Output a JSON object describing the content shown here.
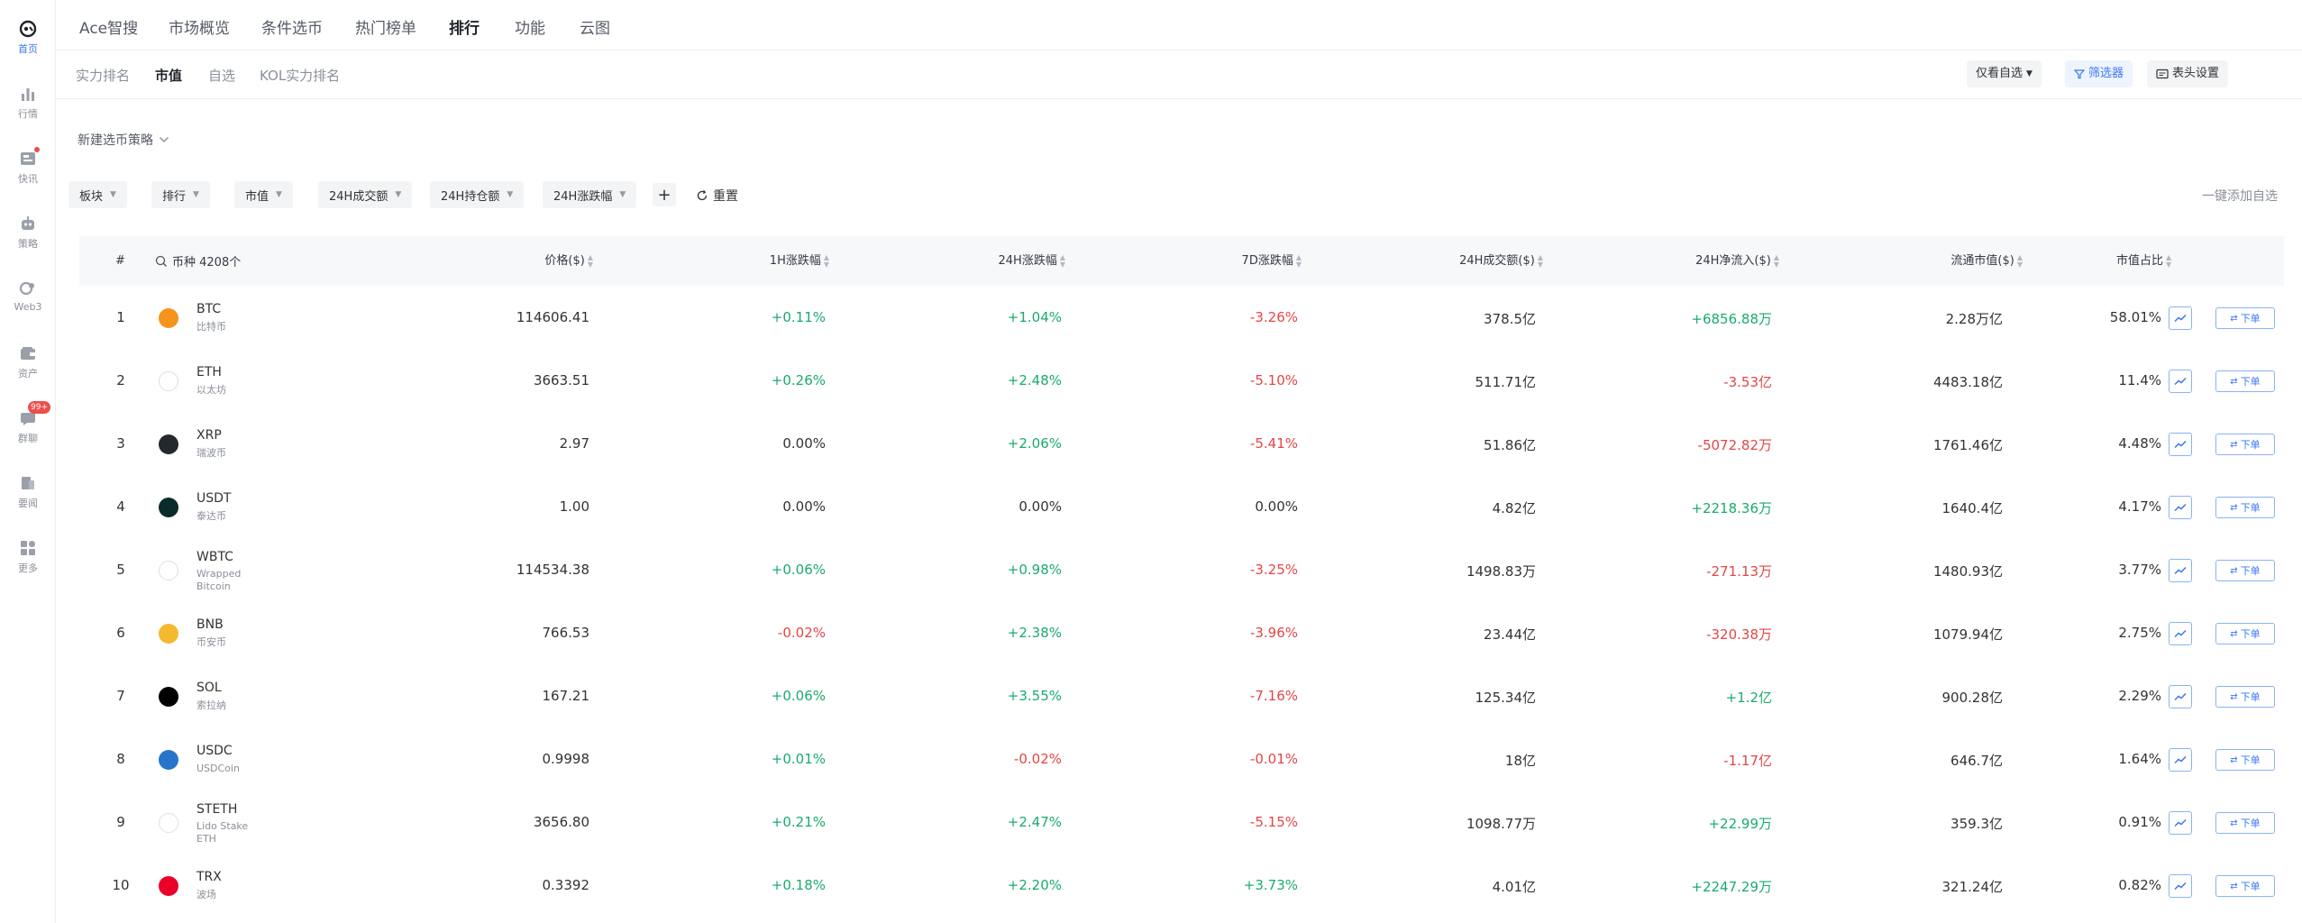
{
  "sidebar": {
    "items": [
      {
        "label": "首页",
        "icon": "home-logo-icon",
        "active": true
      },
      {
        "label": "行情",
        "icon": "bar-chart-icon"
      },
      {
        "label": "快讯",
        "icon": "news-icon"
      },
      {
        "label": "策略",
        "icon": "robot-icon"
      },
      {
        "label": "Web3",
        "icon": "web3-icon"
      },
      {
        "label": "资产",
        "icon": "wallet-icon"
      },
      {
        "label": "群聊",
        "icon": "chat-icon",
        "badge": "99+"
      },
      {
        "label": "要闻",
        "icon": "headline-icon"
      },
      {
        "label": "更多",
        "icon": "grid-icon"
      }
    ]
  },
  "topnav": {
    "items": [
      "Ace智搜",
      "市场概览",
      "条件选币",
      "热门榜单",
      "排行",
      "功能",
      "云图"
    ],
    "active": "排行"
  },
  "subnav": {
    "items": [
      "实力排名",
      "市值",
      "自选",
      "KOL实力排名"
    ],
    "active": "市值",
    "watchlist_only": "仅看自选",
    "filter": "筛选器",
    "header_settings": "表头设置"
  },
  "strategy": {
    "label": "新建选币策略"
  },
  "filters": [
    "板块",
    "排行",
    "市值",
    "24H成交额",
    "24H持仓额",
    "24H涨跌幅"
  ],
  "reset": "重置",
  "add_all": "一键添加自选",
  "table": {
    "headers": {
      "rank": "#",
      "coin": "币种 4208个",
      "price": "价格($)",
      "h1": "1H涨跌幅",
      "h24": "24H涨跌幅",
      "d7": "7D涨跌幅",
      "volume": "24H成交额($)",
      "netflow": "24H净流入($)",
      "mcap": "流通市值($)",
      "share": "市值占比"
    },
    "order_label": "下单",
    "rows": [
      {
        "rank": "1",
        "symbol": "BTC",
        "name": "比特币",
        "logo_color": "#f7931a",
        "price": "114606.41",
        "h1": "+0.11%",
        "h24": "+1.04%",
        "d7": "-3.26%",
        "volume": "378.5亿",
        "netflow": "+6856.88万",
        "mcap": "2.28万亿",
        "share": "58.01%"
      },
      {
        "rank": "2",
        "symbol": "ETH",
        "name": "以太坊",
        "logo_color": "#ffffff",
        "price": "3663.51",
        "h1": "+0.26%",
        "h24": "+2.48%",
        "d7": "-5.10%",
        "volume": "511.71亿",
        "netflow": "-3.53亿",
        "mcap": "4483.18亿",
        "share": "11.4%"
      },
      {
        "rank": "3",
        "symbol": "XRP",
        "name": "瑞波币",
        "logo_color": "#23292f",
        "price": "2.97",
        "h1": "0.00%",
        "h24": "+2.06%",
        "d7": "-5.41%",
        "volume": "51.86亿",
        "netflow": "-5072.82万",
        "mcap": "1761.46亿",
        "share": "4.48%"
      },
      {
        "rank": "4",
        "symbol": "USDT",
        "name": "泰达币",
        "logo_color": "#0b2b2b",
        "price": "1.00",
        "h1": "0.00%",
        "h24": "0.00%",
        "d7": "0.00%",
        "volume": "4.82亿",
        "netflow": "+2218.36万",
        "mcap": "1640.4亿",
        "share": "4.17%"
      },
      {
        "rank": "5",
        "symbol": "WBTC",
        "name": "Wrapped Bitcoin",
        "logo_color": "#ffffff",
        "price": "114534.38",
        "h1": "+0.06%",
        "h24": "+0.98%",
        "d7": "-3.25%",
        "volume": "1498.83万",
        "netflow": "-271.13万",
        "mcap": "1480.93亿",
        "share": "3.77%"
      },
      {
        "rank": "6",
        "symbol": "BNB",
        "name": "币安币",
        "logo_color": "#f3ba2f",
        "price": "766.53",
        "h1": "-0.02%",
        "h24": "+2.38%",
        "d7": "-3.96%",
        "volume": "23.44亿",
        "netflow": "-320.38万",
        "mcap": "1079.94亿",
        "share": "2.75%"
      },
      {
        "rank": "7",
        "symbol": "SOL",
        "name": "索拉纳",
        "logo_color": "#000000",
        "price": "167.21",
        "h1": "+0.06%",
        "h24": "+3.55%",
        "d7": "-7.16%",
        "volume": "125.34亿",
        "netflow": "+1.2亿",
        "mcap": "900.28亿",
        "share": "2.29%"
      },
      {
        "rank": "8",
        "symbol": "USDC",
        "name": "USDCoin",
        "logo_color": "#2775ca",
        "price": "0.9998",
        "h1": "+0.01%",
        "h24": "-0.02%",
        "d7": "-0.01%",
        "volume": "18亿",
        "netflow": "-1.17亿",
        "mcap": "646.7亿",
        "share": "1.64%"
      },
      {
        "rank": "9",
        "symbol": "STETH",
        "name": "Lido Stake ETH",
        "logo_color": "#ffffff",
        "price": "3656.80",
        "h1": "+0.21%",
        "h24": "+2.47%",
        "d7": "-5.15%",
        "volume": "1098.77万",
        "netflow": "+22.99万",
        "mcap": "359.3亿",
        "share": "0.91%"
      },
      {
        "rank": "10",
        "symbol": "TRX",
        "name": "波场",
        "logo_color": "#eb0029",
        "price": "0.3392",
        "h1": "+0.18%",
        "h24": "+2.20%",
        "d7": "+3.73%",
        "volume": "4.01亿",
        "netflow": "+2247.29万",
        "mcap": "321.24亿",
        "share": "0.82%"
      }
    ]
  },
  "colors": {
    "up": "#1aab6d",
    "down": "#e54545",
    "accent": "#3a78f2"
  }
}
